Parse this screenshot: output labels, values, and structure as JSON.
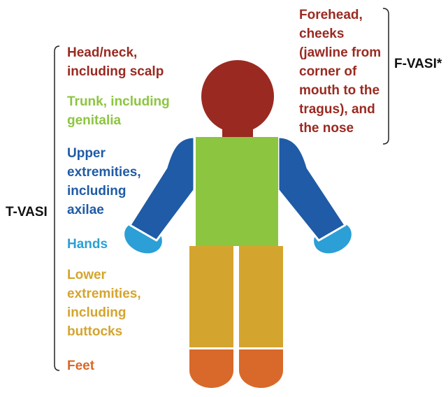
{
  "labels": {
    "t_vasi": "T-VASI",
    "f_vasi": "F-VASI*"
  },
  "regions": [
    {
      "key": "head_neck",
      "text": "Head/neck,\nincluding scalp",
      "color": "#9a2a21"
    },
    {
      "key": "trunk",
      "text": "Trunk, including\ngenitalia",
      "color": "#8cc540"
    },
    {
      "key": "upper",
      "text": "Upper\nextremities,\nincluding\naxilae",
      "color": "#1f5ba6"
    },
    {
      "key": "hands",
      "text": "Hands",
      "color": "#2b9fd6"
    },
    {
      "key": "lower",
      "text": "Lower\nextremities,\nincluding\nbuttocks",
      "color": "#d4a52e"
    },
    {
      "key": "feet",
      "text": "Feet",
      "color": "#d8692a"
    }
  ],
  "face_text": "Forehead,\ncheeks\n(jawline from\ncorner of\nmouth to the\ntragus), and\nthe nose",
  "face_color": "#9a2a21"
}
